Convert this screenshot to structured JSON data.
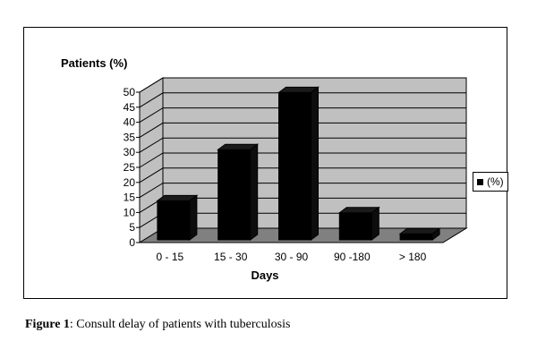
{
  "chart_data": {
    "type": "bar",
    "ylabel": "Patients (%)",
    "xlabel": "Days",
    "categories": [
      "0 - 15",
      "15 - 30",
      "30 - 90",
      "90 -180",
      "> 180"
    ],
    "series": [
      {
        "name": "(%)",
        "values": [
          13,
          30,
          49,
          9,
          2
        ]
      }
    ],
    "ylim": [
      0,
      50
    ],
    "yticks": [
      0,
      5,
      10,
      15,
      20,
      25,
      30,
      35,
      40,
      45,
      50
    ],
    "grid": true,
    "legend": "right",
    "colors": {
      "bar": "#000000",
      "wall": "#c0c0c0",
      "floor": "#808080",
      "grid": "#000000"
    }
  },
  "caption": {
    "label": "Figure 1",
    "text": ": Consult delay of patients with tuberculosis"
  }
}
